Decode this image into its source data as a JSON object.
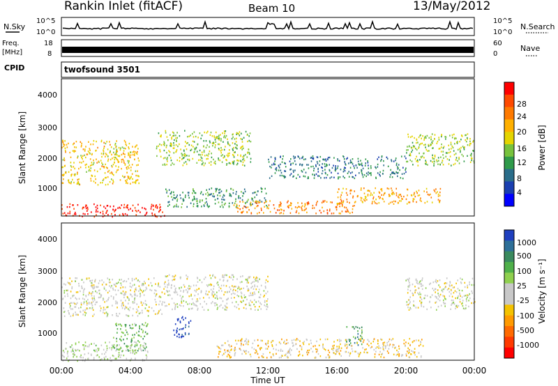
{
  "header": {
    "station": "Rankin Inlet (fitACF)",
    "beam": "Beam 10",
    "date": "13/May/2012"
  },
  "top_panels": {
    "nsky_label": "N.Sky",
    "nsearch_label": "N.Search",
    "nsky_ticks": [
      "10^5",
      "10^0"
    ],
    "nsearch_ticks": [
      "10^5",
      "10^0"
    ],
    "freq_label_line1": "Freq.",
    "freq_label_line2": "[MHz]",
    "freq_ticks": [
      "18",
      "8"
    ],
    "nave_label": "Nave",
    "nave_ticks": [
      "60",
      "0"
    ],
    "cpid_label": "CPID",
    "cpid_name": "twofsound 3501"
  },
  "power_colorbar": {
    "title": "Power [dB]",
    "ticks": [
      "28",
      "24",
      "20",
      "16",
      "12",
      "8",
      "4"
    ],
    "colors": [
      "#ff0000",
      "#ff4a00",
      "#ff7a00",
      "#ffb000",
      "#e4d400",
      "#77c23d",
      "#2f9a4a",
      "#2a6d8a",
      "#1a3fb0",
      "#0000ff"
    ]
  },
  "velocity_colorbar": {
    "title": "Velocity [m s⁻¹]",
    "ticks": [
      "1000",
      "500",
      "100",
      "25",
      "-25",
      "-100",
      "-500",
      "-1000"
    ],
    "colors": [
      "#1f3fbf",
      "#2e6f98",
      "#3a8a5e",
      "#4fb04a",
      "#8fd04f",
      "#c8c8c8",
      "#c8c8c8",
      "#f4c200",
      "#ff9a00",
      "#ff6a00",
      "#ff3a00",
      "#ff0000"
    ]
  },
  "axes": {
    "ylabel": "Slant Range [km]",
    "xlabel": "Time UT",
    "yticks": [
      "1000",
      "2000",
      "3000",
      "4000"
    ],
    "xticks": [
      "00:00",
      "04:00",
      "08:00",
      "12:00",
      "16:00",
      "20:00",
      "00:00"
    ]
  },
  "chart_data": [
    {
      "type": "heatmap",
      "title": "Power",
      "xlabel": "Time UT",
      "ylabel": "Slant Range [km]",
      "xlim": [
        0,
        24
      ],
      "ylim": [
        200,
        4500
      ],
      "zlim": [
        0,
        30
      ],
      "scatter_regions": [
        {
          "t": [
            0.0,
            6.0
          ],
          "r": [
            200,
            600
          ],
          "power": 28
        },
        {
          "t": [
            0.0,
            4.5
          ],
          "r": [
            1200,
            2600
          ],
          "power": 18
        },
        {
          "t": [
            5.5,
            11.0
          ],
          "r": [
            1800,
            2900
          ],
          "power": 14
        },
        {
          "t": [
            6.0,
            12.0
          ],
          "r": [
            500,
            1100
          ],
          "power": 10
        },
        {
          "t": [
            10.0,
            17.0
          ],
          "r": [
            300,
            700
          ],
          "power": 22
        },
        {
          "t": [
            12.0,
            20.0
          ],
          "r": [
            1400,
            2100
          ],
          "power": 8
        },
        {
          "t": [
            16.0,
            22.0
          ],
          "r": [
            600,
            1100
          ],
          "power": 20
        },
        {
          "t": [
            20.0,
            24.0
          ],
          "r": [
            1800,
            2800
          ],
          "power": 14
        }
      ]
    },
    {
      "type": "heatmap",
      "title": "Velocity",
      "xlabel": "Time UT",
      "ylabel": "Slant Range [km]",
      "xlim": [
        0,
        24
      ],
      "ylim": [
        200,
        4500
      ],
      "zlim": [
        -1000,
        1000
      ],
      "scatter_regions": [
        {
          "t": [
            0.0,
            6.0
          ],
          "r": [
            1600,
            2800
          ],
          "velocity": 0
        },
        {
          "t": [
            6.0,
            12.0
          ],
          "r": [
            1800,
            2900
          ],
          "velocity": 0
        },
        {
          "t": [
            20.0,
            24.0
          ],
          "r": [
            1800,
            2800
          ],
          "velocity": 0
        },
        {
          "t": [
            3.0,
            5.0
          ],
          "r": [
            500,
            1400
          ],
          "velocity": 400
        },
        {
          "t": [
            6.5,
            7.5
          ],
          "r": [
            900,
            1600
          ],
          "velocity": 1000
        },
        {
          "t": [
            16.5,
            17.5
          ],
          "r": [
            700,
            1300
          ],
          "velocity": 500
        },
        {
          "t": [
            0.0,
            5.0
          ],
          "r": [
            200,
            800
          ],
          "velocity": 100
        },
        {
          "t": [
            9.0,
            21.0
          ],
          "r": [
            300,
            900
          ],
          "velocity": -200
        }
      ]
    }
  ]
}
